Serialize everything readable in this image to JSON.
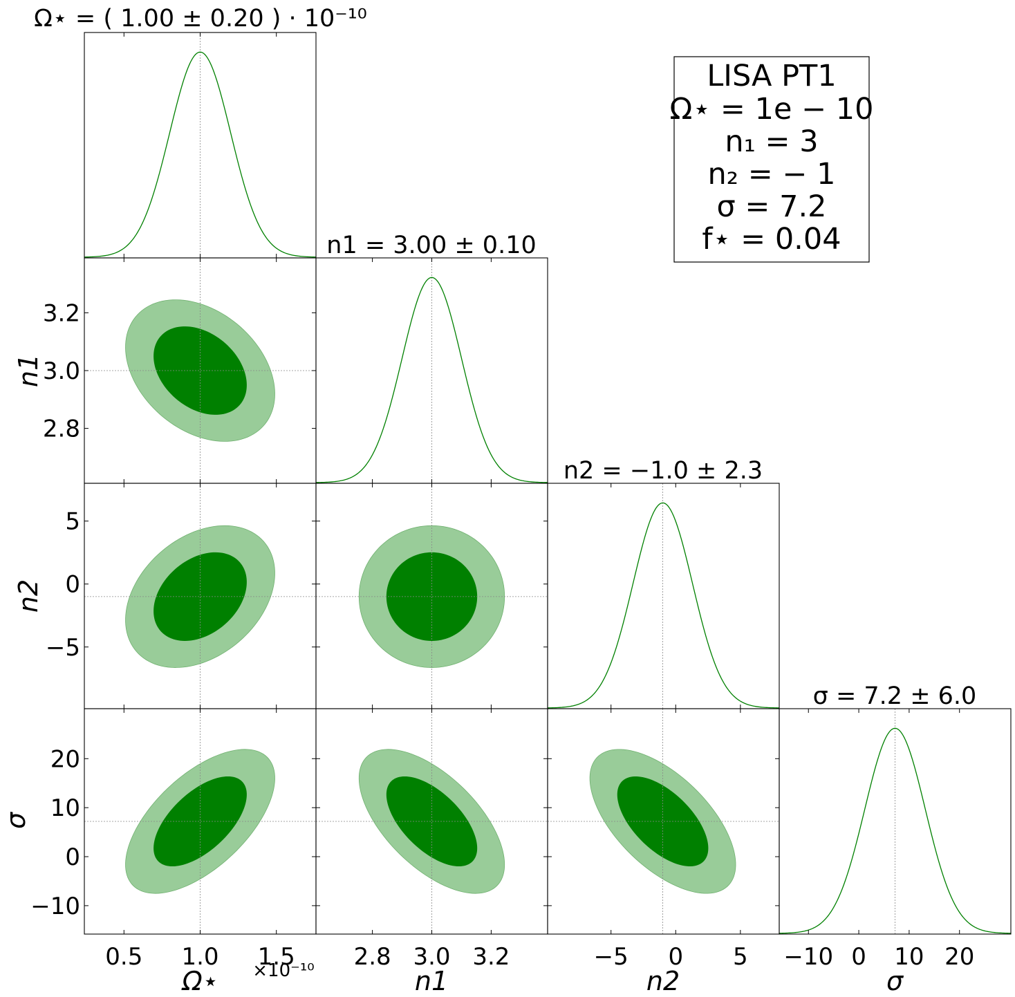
{
  "chart_data": {
    "type": "corner",
    "color_1d": "#008000",
    "color_inner": "#008000",
    "color_outer": "#99cc99",
    "truth_line_color": "#888888",
    "parameters": [
      {
        "key": "omega",
        "axis_label": "Ω⋆",
        "title": "Ω⋆ = ( 1.00 ± 0.20 ) · 10⁻¹⁰",
        "mean": 1.0,
        "sigma": 0.2,
        "truth": 1.0,
        "range": [
          0.24,
          1.76
        ],
        "ticks": [
          0.5,
          1.0,
          1.5
        ],
        "tick_labels": [
          "0.5",
          "1.0",
          "1.5"
        ],
        "offset_label": "×10⁻¹⁰"
      },
      {
        "key": "n1",
        "axis_label": "n1",
        "title": "n1 = 3.00 ± 0.10",
        "mean": 3.0,
        "sigma": 0.1,
        "truth": 3.0,
        "range": [
          2.61,
          3.39
        ],
        "ticks": [
          2.8,
          3.0,
          3.2
        ],
        "tick_labels": [
          "2.8",
          "3.0",
          "3.2"
        ]
      },
      {
        "key": "n2",
        "axis_label": "n2",
        "title": "n2 = −1.0 ± 2.3",
        "mean": -1.0,
        "sigma": 2.3,
        "truth": -1.0,
        "range": [
          -9.9,
          8.0
        ],
        "ticks": [
          -5,
          0,
          5
        ],
        "tick_labels": [
          "−5",
          "0",
          "5"
        ]
      },
      {
        "key": "sigma",
        "axis_label": "σ",
        "title": "σ = 7.2 ± 6.0",
        "mean": 7.2,
        "sigma": 6.0,
        "truth": 7.2,
        "range": [
          -15.8,
          30.2
        ],
        "ticks": [
          -10,
          0,
          10,
          20
        ],
        "tick_labels": [
          "−10",
          "0",
          "10",
          "20"
        ]
      }
    ],
    "correlations": {
      "n1_omega": -0.33,
      "n2_omega": 0.33,
      "n2_n1": 0.0,
      "sigma_omega": 0.6,
      "sigma_n1": -0.6,
      "sigma_n2": -0.6
    },
    "legend": {
      "lines": [
        "LISA PT1",
        "Ω⋆ = 1e − 10",
        "n₁ = 3",
        "n₂ = − 1",
        "σ = 7.2",
        "f⋆ = 0.04"
      ]
    }
  }
}
